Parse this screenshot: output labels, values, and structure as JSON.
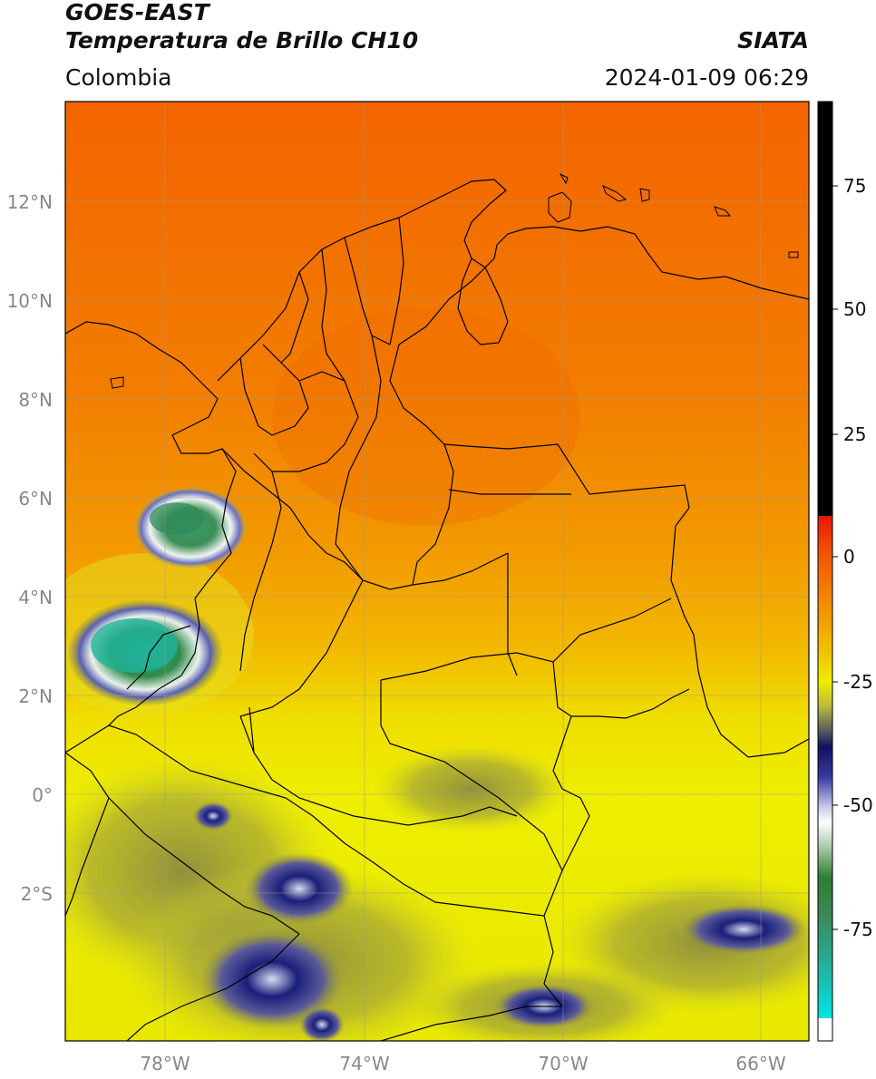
{
  "header": {
    "title_line1": "GOES-EAST",
    "title_line2": "Temperatura de Brillo CH10",
    "organization": "SIATA",
    "region": "Colombia",
    "datetime": "2024-01-09 06:29"
  },
  "map": {
    "lat_labels": [
      "12°N",
      "10°N",
      "8°N",
      "6°N",
      "4°N",
      "2°N",
      "0°",
      "2°S"
    ],
    "lon_labels": [
      "78°W",
      "74°W",
      "70°W",
      "66°W"
    ],
    "gridlines": true,
    "colors": {
      "warm_orange": "#f36e00",
      "orange": "#f28a00",
      "yellow": "#eeee00",
      "olive": "#9c9c3a",
      "navy": "#1a1f7a",
      "white": "#ffffff",
      "green": "#2f8a48",
      "teal": "#20b39a"
    }
  },
  "colorbar": {
    "tick_labels": [
      "75",
      "50",
      "25",
      "0",
      "-25",
      "-50",
      "-75"
    ],
    "colors": [
      "#000000",
      "#e8140a",
      "#f36e00",
      "#f0c800",
      "#eeee00",
      "#8c8c3c",
      "#1a1a80",
      "#ffffff",
      "#2e7d32",
      "#23b3a0",
      "#00e5e5"
    ]
  }
}
